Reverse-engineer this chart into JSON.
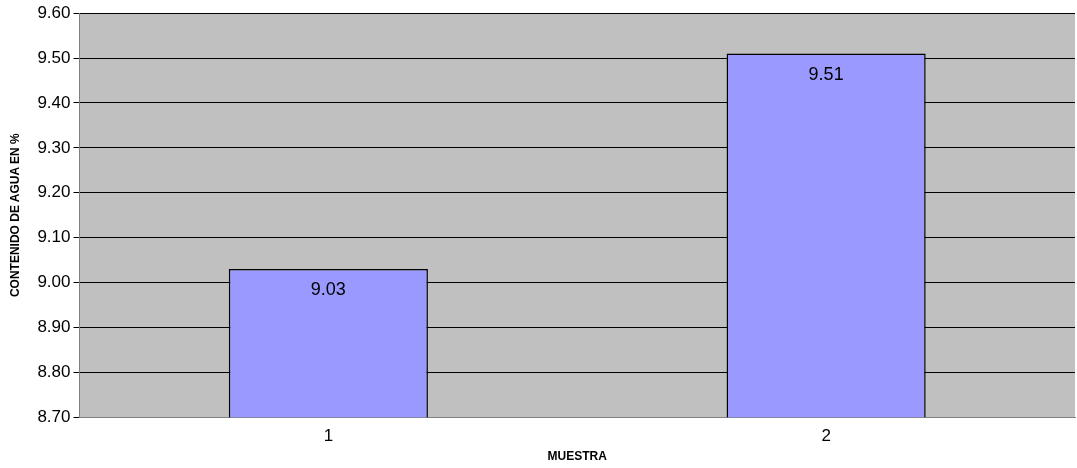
{
  "chart_data": {
    "type": "bar",
    "xlabel": "MUESTRA",
    "ylabel": "CONTENIDO DE AGUA EN %",
    "categories": [
      "1",
      "2"
    ],
    "series": [
      {
        "color": "#9999ff",
        "values": [
          9.03,
          9.51
        ]
      }
    ],
    "ylim": [
      8.7,
      9.6
    ],
    "yticks": [
      {
        "value": 8.7,
        "label": "8.70"
      },
      {
        "value": 8.8,
        "label": "8.80"
      },
      {
        "value": 8.9,
        "label": "8.90"
      },
      {
        "value": 9.0,
        "label": "9.00"
      },
      {
        "value": 9.1,
        "label": "9.10"
      },
      {
        "value": 9.2,
        "label": "9.20"
      },
      {
        "value": 9.3,
        "label": "9.30"
      },
      {
        "value": 9.4,
        "label": "9.40"
      },
      {
        "value": 9.5,
        "label": "9.50"
      },
      {
        "value": 9.6,
        "label": "9.60"
      }
    ],
    "grid": "y",
    "legend": false,
    "data_labels": true
  }
}
